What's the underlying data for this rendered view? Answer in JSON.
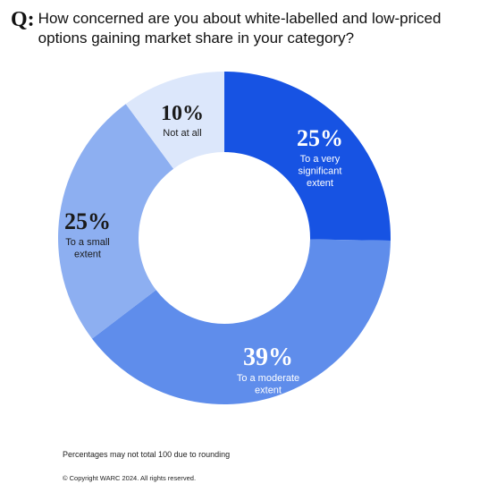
{
  "question": {
    "prefix": "Q:",
    "text": "How concerned are you about white-labelled and low-priced options gaining market share in your category?"
  },
  "chart_data": {
    "type": "pie",
    "donut": true,
    "title": "",
    "slices": [
      {
        "key": "very",
        "value": 25,
        "pct_label": "25%",
        "label_lines": [
          "To a very",
          "significant",
          "extent"
        ],
        "color": "#1753E3",
        "text_color": "#ffffff"
      },
      {
        "key": "moderate",
        "value": 39,
        "pct_label": "39%",
        "label_lines": [
          "To a moderate",
          "extent"
        ],
        "color": "#5F8DEB",
        "text_color": "#ffffff"
      },
      {
        "key": "small",
        "value": 25,
        "pct_label": "25%",
        "label_lines": [
          "To a small",
          "extent"
        ],
        "color": "#8DAFF1",
        "text_color": "#1a1a1a"
      },
      {
        "key": "notatall",
        "value": 10,
        "pct_label": "10%",
        "label_lines": [
          "Not at all"
        ],
        "color": "#DCE7FB",
        "text_color": "#1a1a1a"
      }
    ]
  },
  "footnote": "Percentages may not total 100 due to rounding",
  "copyright": "© Copyright WARC 2024. All rights reserved."
}
